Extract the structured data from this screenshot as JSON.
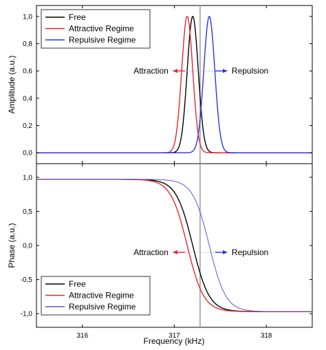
{
  "chart_data": [
    {
      "type": "line",
      "ylabel": "Amplitude (a.u.)",
      "xlim": [
        315.5,
        318.5
      ],
      "ylim": [
        -0.08,
        1.08
      ],
      "yticks": [
        0.0,
        0.2,
        0.4,
        0.6,
        0.8,
        1.0
      ],
      "ytick_labels": [
        "0,0",
        "0,2",
        "0,4",
        "0,6",
        "0,8",
        "1,0"
      ],
      "grid": false,
      "legend": "top-left",
      "vline_x": 317.28,
      "series": [
        {
          "name": "Free",
          "color": "#000000",
          "center": 317.2,
          "sigma": 0.06
        },
        {
          "name": "Attractive Regime",
          "color": "#e8262a",
          "center": 317.14,
          "sigma": 0.06
        },
        {
          "name": "Repulsive Regime",
          "color": "#2a35d8",
          "center": 317.38,
          "sigma": 0.06
        }
      ],
      "annotations": [
        {
          "text": "Attraction",
          "direction": "left",
          "color": "#e8262a",
          "x": 317.28,
          "y": 0.6
        },
        {
          "text": "Repulsion",
          "direction": "right",
          "color": "#2a35d8",
          "x": 317.28,
          "y": 0.6
        }
      ]
    },
    {
      "type": "line",
      "xlabel": "Frequency (kHz)",
      "ylabel": "Phase (a.u.)",
      "xlim": [
        315.5,
        318.5
      ],
      "ylim": [
        -1.2,
        1.2
      ],
      "xticks": [
        316,
        317,
        318
      ],
      "xtick_labels": [
        "316",
        "317",
        "318"
      ],
      "yticks": [
        -1.0,
        -0.5,
        0.0,
        0.5,
        1.0
      ],
      "ytick_labels": [
        "-1,0",
        "-0,5",
        "0,0",
        "0,5",
        "1,0"
      ],
      "grid": false,
      "legend": "bottom-left",
      "vline_x": 317.28,
      "series": [
        {
          "name": "Free",
          "color": "#000000",
          "center": 317.2,
          "width": 0.18
        },
        {
          "name": "Attractive Regime",
          "color": "#e8262a",
          "center": 317.14,
          "width": 0.18
        },
        {
          "name": "Repulsive Regime",
          "color": "#5558c8",
          "center": 317.38,
          "width": 0.18
        }
      ],
      "annotations": [
        {
          "text": "Attraction",
          "direction": "left",
          "color": "#e8262a",
          "x": 317.28,
          "y": -0.1
        },
        {
          "text": "Repulsion",
          "direction": "right",
          "color": "#2a35d8",
          "x": 317.28,
          "y": -0.1
        }
      ]
    }
  ]
}
